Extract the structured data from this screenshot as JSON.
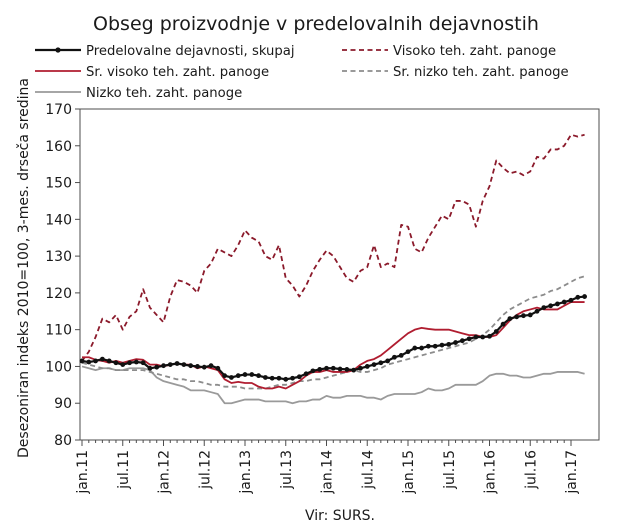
{
  "chart_data": {
    "type": "line",
    "title": "Obseg proizvodnje v predelovalnih dejavnostih",
    "xlabel": "",
    "ylabel": "Desezoniran indeks 2010=100, 3-mes. drseča sredina",
    "source": "Vir: SURS.",
    "ylim": [
      80,
      170
    ],
    "yticks": [
      80,
      90,
      100,
      110,
      120,
      130,
      140,
      150,
      160,
      170
    ],
    "x_start": "jan.11",
    "x_end": "jan.17",
    "xtick_labels": [
      "jan.11",
      "jul.11",
      "jan.12",
      "jul.12",
      "jan.13",
      "jul.13",
      "jan.14",
      "jul.14",
      "jan.15",
      "jul.15",
      "jan.16",
      "jul.16",
      "jan.17"
    ],
    "grid": false,
    "legend_position": "top",
    "series": [
      {
        "name": "Predelovalne dejavnosti, skupaj",
        "color": "#111111",
        "style": "solid-markers",
        "values": [
          101.5,
          101.2,
          101.5,
          102.0,
          101.5,
          101.0,
          100.5,
          101.0,
          101.2,
          101.0,
          99.5,
          99.8,
          100.2,
          100.5,
          100.8,
          100.5,
          100.2,
          100.0,
          99.8,
          100.2,
          99.5,
          97.5,
          97.0,
          97.5,
          97.8,
          97.8,
          97.5,
          97.0,
          96.8,
          96.8,
          96.5,
          96.8,
          97.2,
          98.0,
          98.8,
          99.2,
          99.5,
          99.5,
          99.3,
          99.2,
          99.0,
          99.5,
          100.0,
          100.5,
          101.0,
          101.5,
          102.5,
          103.0,
          104.0,
          105.0,
          105.0,
          105.5,
          105.5,
          105.8,
          106.0,
          106.5,
          107.0,
          107.5,
          108.0,
          108.0,
          108.2,
          109.5,
          111.5,
          113.0,
          113.5,
          113.8,
          114.0,
          115.0,
          116.0,
          116.5,
          117.0,
          117.5,
          118.0,
          118.8,
          119.0
        ]
      },
      {
        "name": "Visoko teh. zaht. panoge",
        "color": "#8b1a2b",
        "style": "dashed",
        "values": [
          101.5,
          104.0,
          108.0,
          113.0,
          112.0,
          114.0,
          110.0,
          113.5,
          115.0,
          121.0,
          116.0,
          114.0,
          112.0,
          119.0,
          123.5,
          123.0,
          122.0,
          120.0,
          126.0,
          128.0,
          132.0,
          131.0,
          130.0,
          133.0,
          137.0,
          135.0,
          134.0,
          130.0,
          129.0,
          133.0,
          124.0,
          122.0,
          119.0,
          122.0,
          126.0,
          129.0,
          131.5,
          130.0,
          127.0,
          124.0,
          123.0,
          126.0,
          127.0,
          133.0,
          127.0,
          128.0,
          127.0,
          138.5,
          138.0,
          132.0,
          131.0,
          135.0,
          138.0,
          141.0,
          140.0,
          145.0,
          145.0,
          144.0,
          138.0,
          145.0,
          149.0,
          156.0,
          154.0,
          152.5,
          153.0,
          152.0,
          153.0,
          157.0,
          156.5,
          159.0,
          159.0,
          160.0,
          163.0,
          162.5,
          163.0
        ]
      },
      {
        "name": "Sr. visoko teh. zaht. panoge",
        "color": "#b01d30",
        "style": "solid",
        "values": [
          102.5,
          102.5,
          101.8,
          101.5,
          101.0,
          101.5,
          101.0,
          101.5,
          102.0,
          101.8,
          100.5,
          100.5,
          100.0,
          100.5,
          100.8,
          100.5,
          100.5,
          99.5,
          100.0,
          99.5,
          99.0,
          96.5,
          95.5,
          95.8,
          95.5,
          95.5,
          94.5,
          94.0,
          94.0,
          94.5,
          94.0,
          95.0,
          96.0,
          97.5,
          98.5,
          98.5,
          99.0,
          98.5,
          98.5,
          98.5,
          99.0,
          100.5,
          101.5,
          102.0,
          103.0,
          104.5,
          106.0,
          107.5,
          109.0,
          110.0,
          110.5,
          110.2,
          110.0,
          110.0,
          110.0,
          109.5,
          109.0,
          108.5,
          108.5,
          108.0,
          108.0,
          108.5,
          110.5,
          112.5,
          114.0,
          115.0,
          115.5,
          116.0,
          115.5,
          115.5,
          115.5,
          116.5,
          117.5,
          117.5,
          117.5
        ]
      },
      {
        "name": "Sr. nizko teh. zaht. panoge",
        "color": "#8c8c8c",
        "style": "dashed",
        "values": [
          101.0,
          100.5,
          100.0,
          99.5,
          99.5,
          99.0,
          99.0,
          99.0,
          99.0,
          99.0,
          98.5,
          98.0,
          97.5,
          97.0,
          96.5,
          96.5,
          96.0,
          96.0,
          95.5,
          95.0,
          95.0,
          94.5,
          94.5,
          94.5,
          94.0,
          94.0,
          94.0,
          94.0,
          94.5,
          95.0,
          95.0,
          95.5,
          96.0,
          96.0,
          96.5,
          96.5,
          97.0,
          97.5,
          98.0,
          98.5,
          99.0,
          98.5,
          98.5,
          99.0,
          99.5,
          100.5,
          101.0,
          101.5,
          102.0,
          102.5,
          103.0,
          103.5,
          104.0,
          104.5,
          105.0,
          105.5,
          106.0,
          106.5,
          107.5,
          108.5,
          110.0,
          112.0,
          114.0,
          115.5,
          116.5,
          117.5,
          118.5,
          119.0,
          119.5,
          120.5,
          121.0,
          122.0,
          123.0,
          124.0,
          124.5
        ]
      },
      {
        "name": "Nizko teh. zaht. panoge",
        "color": "#9a9a9a",
        "style": "solid",
        "values": [
          100.0,
          99.5,
          99.0,
          99.5,
          99.5,
          99.0,
          99.0,
          99.5,
          99.5,
          99.5,
          99.0,
          97.0,
          96.0,
          95.5,
          95.0,
          94.5,
          93.5,
          93.5,
          93.5,
          93.0,
          92.5,
          90.0,
          90.0,
          90.5,
          91.0,
          91.0,
          91.0,
          90.5,
          90.5,
          90.5,
          90.5,
          90.0,
          90.5,
          90.5,
          91.0,
          91.0,
          92.0,
          91.5,
          91.5,
          92.0,
          92.0,
          92.0,
          91.5,
          91.5,
          91.0,
          92.0,
          92.5,
          92.5,
          92.5,
          92.5,
          93.0,
          94.0,
          93.5,
          93.5,
          94.0,
          95.0,
          95.0,
          95.0,
          95.0,
          96.0,
          97.5,
          98.0,
          98.0,
          97.5,
          97.5,
          97.0,
          97.0,
          97.5,
          98.0,
          98.0,
          98.5,
          98.5,
          98.5,
          98.5,
          98.0
        ]
      }
    ]
  }
}
